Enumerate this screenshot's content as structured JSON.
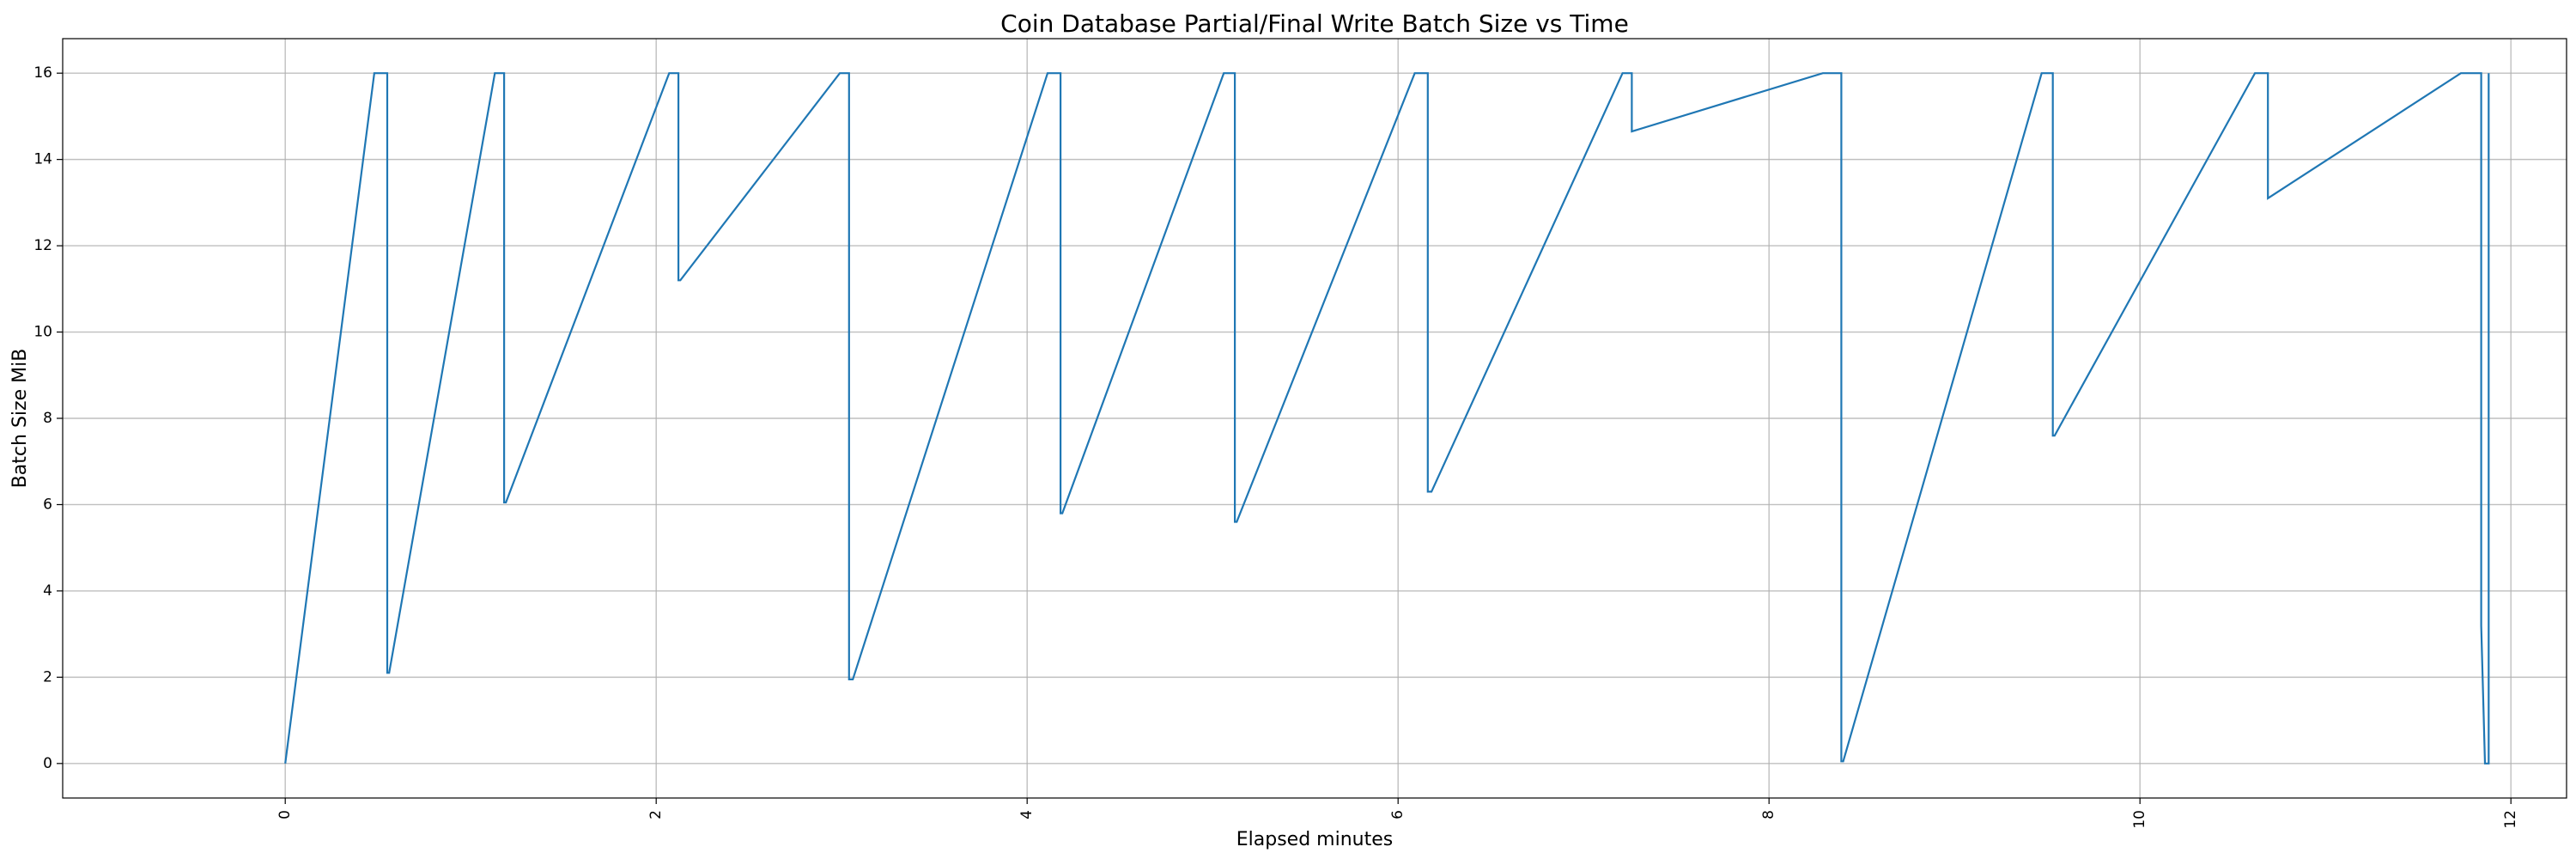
{
  "chart_data": {
    "type": "line",
    "title": "Coin Database Partial/Final Write Batch Size vs Time",
    "xlabel": "Elapsed minutes",
    "ylabel": "Batch Size MiB",
    "xlim": [
      -1.2,
      12.3
    ],
    "ylim": [
      -0.8,
      16.8
    ],
    "xticks": [
      0,
      2,
      4,
      6,
      8,
      10,
      12
    ],
    "xtick_labels": [
      "0",
      "2",
      "4",
      "6",
      "8",
      "10",
      "12"
    ],
    "yticks": [
      0,
      2,
      4,
      6,
      8,
      10,
      12,
      14,
      16
    ],
    "ytick_labels": [
      "0",
      "2",
      "4",
      "6",
      "8",
      "10",
      "12",
      "14",
      "16"
    ],
    "grid": true,
    "line_color": "#1f77b4",
    "series": [
      {
        "x": [
          0.0,
          0.48,
          0.55,
          0.55,
          0.56,
          1.13,
          1.18,
          1.18,
          1.19,
          2.07,
          2.12,
          2.12,
          2.13,
          2.99,
          3.04,
          3.04,
          3.06,
          4.11,
          4.18,
          4.18,
          4.19,
          5.06,
          5.12,
          5.12,
          5.13,
          6.09,
          6.16,
          6.16,
          6.18,
          7.21,
          7.26,
          7.26,
          8.29,
          8.39,
          8.39,
          8.4,
          9.47,
          9.53,
          9.53,
          9.54,
          10.62,
          10.69,
          10.69,
          11.73,
          11.84,
          11.84,
          11.86,
          11.87,
          11.88,
          11.88
        ],
        "y": [
          0.0,
          16.0,
          16.0,
          2.1,
          2.1,
          16.0,
          16.0,
          6.05,
          6.05,
          16.0,
          16.0,
          11.2,
          11.2,
          16.0,
          16.0,
          1.95,
          1.95,
          16.0,
          16.0,
          5.8,
          5.8,
          16.0,
          16.0,
          5.6,
          5.6,
          16.0,
          16.0,
          6.3,
          6.3,
          16.0,
          16.0,
          14.65,
          16.0,
          16.0,
          0.05,
          0.05,
          16.0,
          16.0,
          7.6,
          7.6,
          16.0,
          16.0,
          13.1,
          16.0,
          16.0,
          3.2,
          0.0,
          0.0,
          0.0,
          16.0
        ]
      }
    ]
  }
}
